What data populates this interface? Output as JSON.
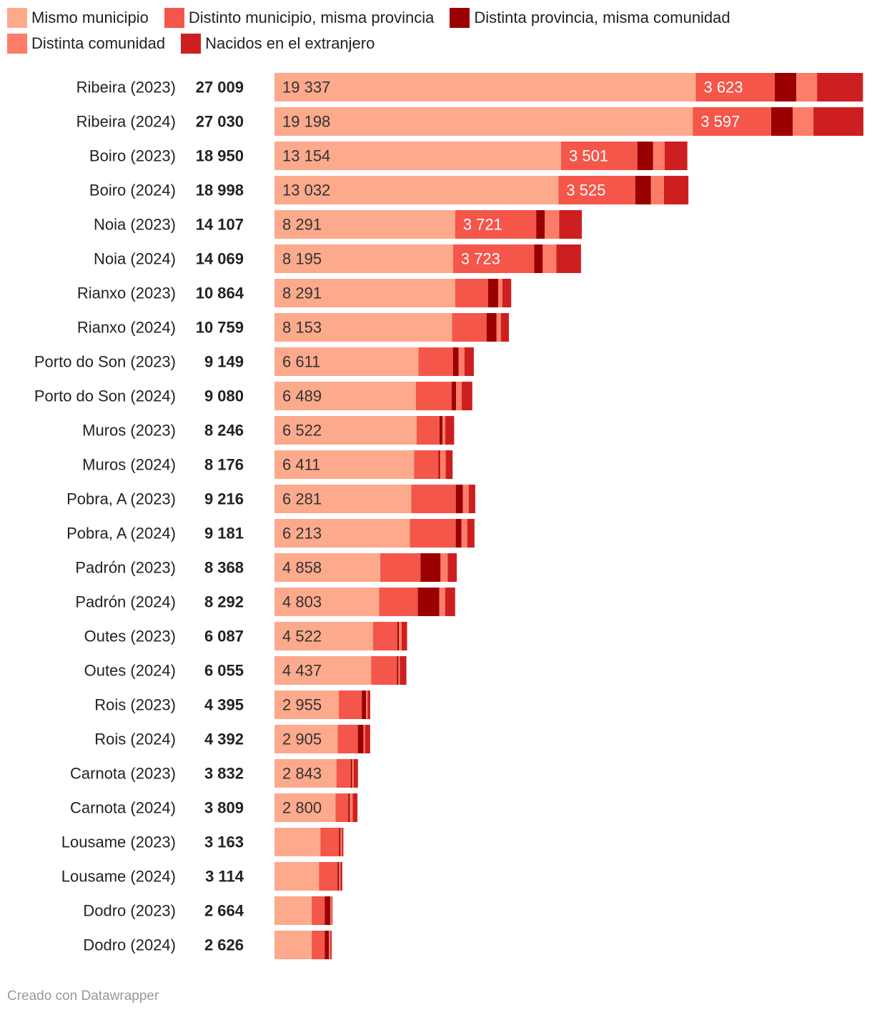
{
  "chart_data": {
    "type": "bar",
    "orientation": "horizontal",
    "stacked": true,
    "series": [
      {
        "name": "Mismo municipio",
        "color": "#fca98c"
      },
      {
        "name": "Distinto municipio, misma provincia",
        "color": "#f5564a"
      },
      {
        "name": "Distinta provincia, misma comunidad",
        "color": "#9a0000"
      },
      {
        "name": "Distinta comunidad",
        "color": "#fd7d68"
      },
      {
        "name": "Nacidos en el extranjero",
        "color": "#ce1f20"
      }
    ],
    "rows": [
      {
        "label": "Ribeira (2023)",
        "total": "27 009",
        "values": [
          19337,
          3623,
          987,
          955,
          2107
        ],
        "labels": [
          "19 337",
          "3 623"
        ]
      },
      {
        "label": "Ribeira (2024)",
        "total": "27 030",
        "values": [
          19198,
          3597,
          987,
          955,
          2293
        ],
        "labels": [
          "19 198",
          "3 597"
        ]
      },
      {
        "label": "Boiro (2023)",
        "total": "18 950",
        "values": [
          13154,
          3501,
          724,
          527,
          1044
        ],
        "labels": [
          "13 154",
          "3 501"
        ]
      },
      {
        "label": "Boiro (2024)",
        "total": "18 998",
        "values": [
          13032,
          3525,
          724,
          592,
          1125
        ],
        "labels": [
          "13 032",
          "3 525"
        ]
      },
      {
        "label": "Noia (2023)",
        "total": "14 107",
        "values": [
          8291,
          3721,
          395,
          658,
          1042
        ],
        "labels": [
          "8 291",
          "3 721"
        ]
      },
      {
        "label": "Noia (2024)",
        "total": "14 069",
        "values": [
          8195,
          3723,
          395,
          624,
          1132
        ],
        "labels": [
          "8 195",
          "3 723"
        ]
      },
      {
        "label": "Rianxo (2023)",
        "total": "10 864",
        "values": [
          8291,
          1514,
          461,
          197,
          401
        ],
        "labels": [
          "8 291",
          ""
        ]
      },
      {
        "label": "Rianxo (2024)",
        "total": "10 759",
        "values": [
          8153,
          1580,
          461,
          197,
          368
        ],
        "labels": [
          "8 153",
          ""
        ]
      },
      {
        "label": "Porto do Son (2023)",
        "total": "9 149",
        "values": [
          6611,
          1580,
          263,
          263,
          432
        ],
        "labels": [
          "6 611",
          ""
        ]
      },
      {
        "label": "Porto do Son (2024)",
        "total": "9 080",
        "values": [
          6489,
          1646,
          197,
          263,
          485
        ],
        "labels": [
          "6 489",
          ""
        ]
      },
      {
        "label": "Muros (2023)",
        "total": "8 246",
        "values": [
          6522,
          1053,
          132,
          132,
          407
        ],
        "labels": [
          "6 522",
          ""
        ]
      },
      {
        "label": "Muros (2024)",
        "total": "8 176",
        "values": [
          6411,
          1119,
          66,
          263,
          317
        ],
        "labels": [
          "6 411",
          ""
        ]
      },
      {
        "label": "Pobra, A (2023)",
        "total": "9 216",
        "values": [
          6281,
          2041,
          329,
          263,
          302
        ],
        "labels": [
          "6 281",
          ""
        ]
      },
      {
        "label": "Pobra, A (2024)",
        "total": "9 181",
        "values": [
          6213,
          2107,
          263,
          263,
          335
        ],
        "labels": [
          "6 213",
          ""
        ]
      },
      {
        "label": "Padrón (2023)",
        "total": "8 368",
        "values": [
          4858,
          1843,
          921,
          329,
          417
        ],
        "labels": [
          "4 858",
          ""
        ]
      },
      {
        "label": "Padrón (2024)",
        "total": "8 292",
        "values": [
          4803,
          1777,
          987,
          263,
          462
        ],
        "labels": [
          "4 803",
          ""
        ]
      },
      {
        "label": "Outes (2023)",
        "total": "6 087",
        "values": [
          4522,
          1119,
          66,
          132,
          248
        ],
        "labels": [
          "4 522",
          ""
        ]
      },
      {
        "label": "Outes (2024)",
        "total": "6 055",
        "values": [
          4437,
          1185,
          66,
          66,
          301
        ],
        "labels": [
          "4 437",
          ""
        ]
      },
      {
        "label": "Rois (2023)",
        "total": "4 395",
        "values": [
          2955,
          1053,
          197,
          66,
          124
        ],
        "labels": [
          "2 955",
          ""
        ]
      },
      {
        "label": "Rois (2024)",
        "total": "4 392",
        "values": [
          2905,
          921,
          263,
          66,
          237
        ],
        "labels": [
          "2 905",
          ""
        ]
      },
      {
        "label": "Carnota (2023)",
        "total": "3 832",
        "values": [
          2843,
          658,
          66,
          66,
          199
        ],
        "labels": [
          "2 843",
          ""
        ]
      },
      {
        "label": "Carnota (2024)",
        "total": "3 809",
        "values": [
          2800,
          592,
          66,
          132,
          219
        ],
        "labels": [
          "2 800",
          ""
        ]
      },
      {
        "label": "Lousame (2023)",
        "total": "3 163",
        "values": [
          2107,
          856,
          66,
          66,
          68
        ],
        "labels": [
          "",
          ""
        ]
      },
      {
        "label": "Lousame (2024)",
        "total": "3 114",
        "values": [
          2041,
          856,
          66,
          66,
          85
        ],
        "labels": [
          "",
          ""
        ]
      },
      {
        "label": "Dodro (2023)",
        "total": "2 664",
        "values": [
          1712,
          592,
          263,
          66,
          31
        ],
        "labels": [
          "",
          ""
        ]
      },
      {
        "label": "Dodro (2024)",
        "total": "2 626",
        "values": [
          1712,
          592,
          197,
          66,
          59
        ],
        "labels": [
          "",
          ""
        ]
      }
    ]
  },
  "footer": "Creado con Datawrapper"
}
